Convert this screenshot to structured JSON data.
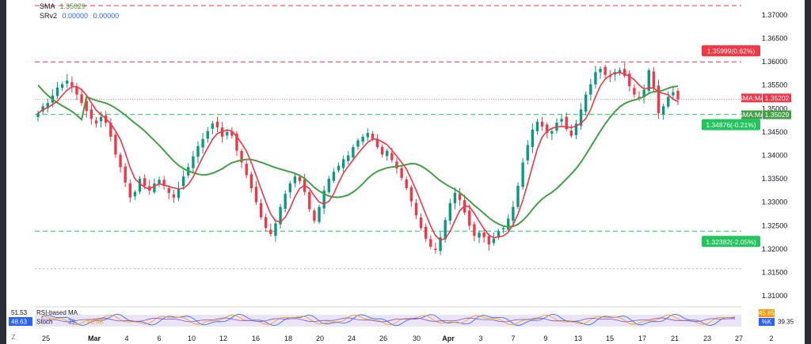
{
  "legend": {
    "sma_label": "SMA",
    "sma_value": "1.35029",
    "srv2_label": "SRv2",
    "srv2_value1": "0.00000",
    "srv2_value2": "0.00000"
  },
  "colors": {
    "up": "#089981",
    "down": "#f23645",
    "fast_ma": "#f23645",
    "slow_ma": "#43a047",
    "resistance": "#f23645",
    "support": "#22c55e",
    "oscillator_band": "#e1d9f5"
  },
  "price_axis": {
    "ticks": [
      "1.37000",
      "1.36500",
      "1.36000",
      "1.35500",
      "1.35000",
      "1.34500",
      "1.34000",
      "1.33500",
      "1.33000",
      "1.32500",
      "1.32000",
      "1.31500",
      "1.31000"
    ]
  },
  "time_axis": {
    "labels": [
      "25",
      "Mar",
      "4",
      "6",
      "10",
      "12",
      "16",
      "18",
      "20",
      "24",
      "26",
      "30",
      "Apr",
      "3",
      "7",
      "9",
      "13",
      "15",
      "17",
      "21",
      "23",
      "27",
      "2"
    ]
  },
  "levels": {
    "top_level": "1.37200",
    "resistance": {
      "price": 1.35999,
      "label": "1.35999(0.62%)"
    },
    "support_near": {
      "price": 1.34876,
      "label": "1.34876(-0.21%)"
    },
    "support_far": {
      "price": 1.32382,
      "label": "1.32382(-2.05%)"
    },
    "faint_level": 1.3158
  },
  "price_tags": [
    {
      "name": "SMA:MA",
      "value": "1.35202",
      "color": "#f23645"
    },
    {
      "name": "SMA:MA",
      "value": "1.35029",
      "color": "#43a047"
    }
  ],
  "indicator": {
    "rsi_based_ma_label": "RSI-based MA",
    "rsi_based_ma_value": "51.53",
    "rsi_value": "48.63",
    "stoch_label": "Stoch",
    "stoch_value": "39.",
    "extra_value": "40.88",
    "tag_d_value": "45.85",
    "tag_k_label": "%K",
    "tag_k_value": "39.35"
  },
  "chart_data": {
    "type": "candlestick",
    "symbol_hint": "",
    "ylim": [
      1.3085,
      1.3732
    ],
    "x_labels": [
      "25",
      "Mar",
      "4",
      "6",
      "10",
      "12",
      "16",
      "18",
      "20",
      "24",
      "26",
      "30",
      "Apr",
      "3",
      "7",
      "9",
      "13",
      "15",
      "17",
      "21",
      "23",
      "27",
      "2"
    ],
    "close_series": [
      1.349,
      1.3505,
      1.3512,
      1.3528,
      1.3545,
      1.3552,
      1.356,
      1.3548,
      1.353,
      1.3512,
      1.3495,
      1.3478,
      1.3468,
      1.3482,
      1.347,
      1.344,
      1.3402,
      1.3375,
      1.3342,
      1.331,
      1.3322,
      1.335,
      1.3335,
      1.3325,
      1.334,
      1.3348,
      1.3335,
      1.332,
      1.331,
      1.333,
      1.3355,
      1.3375,
      1.3398,
      1.342,
      1.3435,
      1.3452,
      1.3468,
      1.346,
      1.344,
      1.345,
      1.3442,
      1.341,
      1.3385,
      1.3358,
      1.333,
      1.33,
      1.3268,
      1.3245,
      1.3232,
      1.3255,
      1.329,
      1.3318,
      1.334,
      1.3355,
      1.3345,
      1.3322,
      1.3285,
      1.326,
      1.329,
      1.3325,
      1.335,
      1.3365,
      1.3378,
      1.3392,
      1.34,
      1.3418,
      1.3432,
      1.344,
      1.3448,
      1.3436,
      1.3418,
      1.3402,
      1.341,
      1.339,
      1.3372,
      1.3352,
      1.333,
      1.3302,
      1.3272,
      1.3245,
      1.3222,
      1.3205,
      1.3198,
      1.3225,
      1.3262,
      1.3298,
      1.332,
      1.3305,
      1.3278,
      1.325,
      1.3228,
      1.3235,
      1.3225,
      1.321,
      1.3222,
      1.3238,
      1.3245,
      1.3265,
      1.329,
      1.3335,
      1.3385,
      1.3422,
      1.3455,
      1.3472,
      1.3462,
      1.3448,
      1.3452,
      1.347,
      1.3478,
      1.3456,
      1.3442,
      1.3468,
      1.3498,
      1.353,
      1.3552,
      1.3578,
      1.3585,
      1.3572,
      1.3568,
      1.3578,
      1.3582,
      1.357,
      1.3548,
      1.353,
      1.3522,
      1.354,
      1.3582,
      1.3545,
      1.349,
      1.3505,
      1.3525,
      1.3535,
      1.352
    ],
    "series": [
      {
        "name": "SMA:MA",
        "value": 1.35202
      },
      {
        "name": "SMA:MA",
        "value": 1.35029
      }
    ]
  }
}
